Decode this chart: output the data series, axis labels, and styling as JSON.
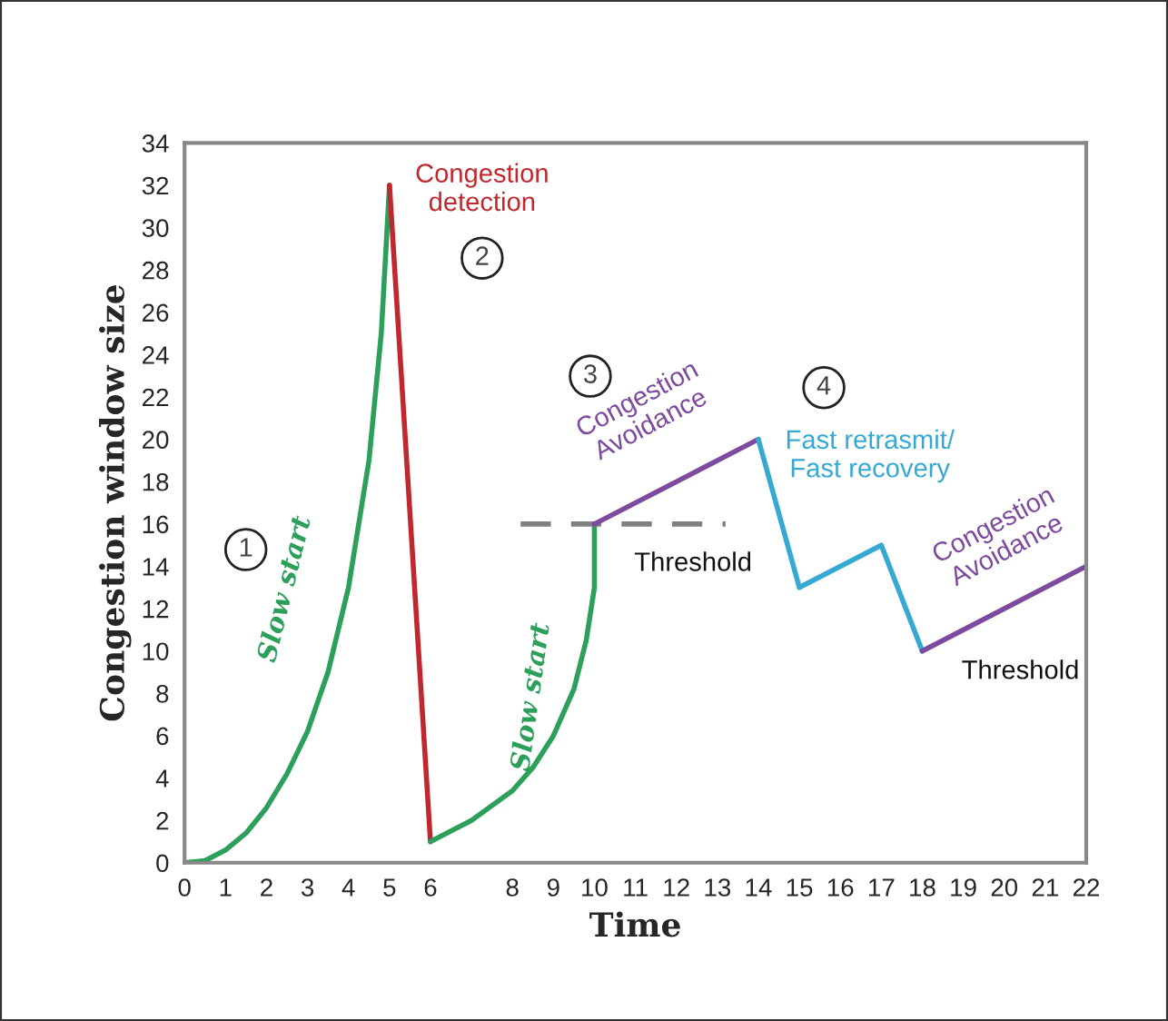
{
  "chart_data": {
    "type": "line",
    "xlabel": "Time",
    "ylabel": "Congestion window size",
    "xlim": [
      0,
      22
    ],
    "xticks": [
      0,
      1,
      2,
      3,
      4,
      5,
      6,
      8,
      9,
      10,
      11,
      12,
      13,
      14,
      15,
      16,
      17,
      18,
      19,
      20,
      21,
      22
    ],
    "ylim": [
      0,
      34
    ],
    "yticks": [
      0,
      2,
      4,
      6,
      8,
      10,
      12,
      14,
      16,
      18,
      20,
      22,
      24,
      26,
      28,
      30,
      32,
      34
    ],
    "grid": false,
    "legend": false,
    "marker": "none",
    "series": [
      {
        "color": "#2ca05a",
        "x": [
          0,
          0.5,
          1,
          1.5,
          2,
          2.5,
          3,
          3.5,
          4,
          4.5,
          4.8,
          5
        ],
        "values": [
          0,
          0.1,
          0.6,
          1.4,
          2.6,
          4.2,
          6.2,
          9,
          13,
          19,
          25,
          32
        ]
      },
      {
        "color": "#c0282d",
        "x": [
          5,
          6
        ],
        "values": [
          32,
          1
        ]
      },
      {
        "color": "#2ca05a",
        "x": [
          6,
          7,
          8,
          8.5,
          9,
          9.5,
          9.8,
          10,
          10
        ],
        "values": [
          1,
          2,
          3.4,
          4.5,
          6,
          8.2,
          10.5,
          13,
          16
        ]
      },
      {
        "color": "#808080",
        "line_style": "dashed",
        "x": [
          8.2,
          13.2
        ],
        "values": [
          16,
          16
        ]
      },
      {
        "color": "#7d4a9e",
        "x": [
          10,
          14
        ],
        "values": [
          16,
          20
        ]
      },
      {
        "color": "#36a9d2",
        "x": [
          14,
          15,
          17,
          18
        ],
        "values": [
          20,
          13,
          15,
          10
        ]
      },
      {
        "color": "#7d4a9e",
        "x": [
          18,
          22
        ],
        "values": [
          10,
          14
        ]
      }
    ],
    "annotations": [
      "1",
      "Slow start",
      "Congestion\ndetection",
      "2",
      "Slow start",
      "3",
      "Congestion\nAvoidance",
      "Threshold",
      "4",
      "Fast retrasmit/\nFast recovery",
      "Congestion\nAvoidance",
      "Threshold"
    ]
  }
}
